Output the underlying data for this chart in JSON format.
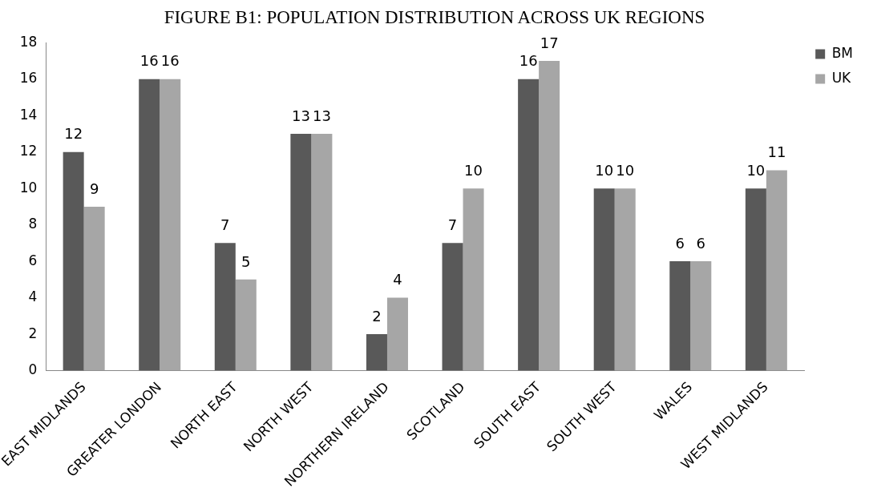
{
  "chart_data": {
    "type": "bar",
    "title": "FIGURE B1: POPULATION DISTRIBUTION ACROSS UK REGIONS",
    "categories": [
      "EAST MIDLANDS",
      "GREATER LONDON",
      "NORTH EAST",
      "NORTH WEST",
      "NORTHERN IRELAND",
      "SCOTLAND",
      "SOUTH EAST",
      "SOUTH WEST",
      "WALES",
      "WEST MIDLANDS"
    ],
    "series": [
      {
        "name": "BM",
        "color": "#595959",
        "values": [
          12,
          16,
          7,
          13,
          2,
          7,
          16,
          10,
          6,
          10
        ]
      },
      {
        "name": "UK",
        "color": "#a6a6a6",
        "values": [
          9,
          16,
          5,
          13,
          4,
          10,
          17,
          10,
          6,
          11
        ]
      }
    ],
    "ylim": [
      0,
      18
    ],
    "yticks": [
      0,
      2,
      4,
      6,
      8,
      10,
      12,
      14,
      16,
      18
    ],
    "grid": false,
    "legend": "top right",
    "data_labels": true
  }
}
